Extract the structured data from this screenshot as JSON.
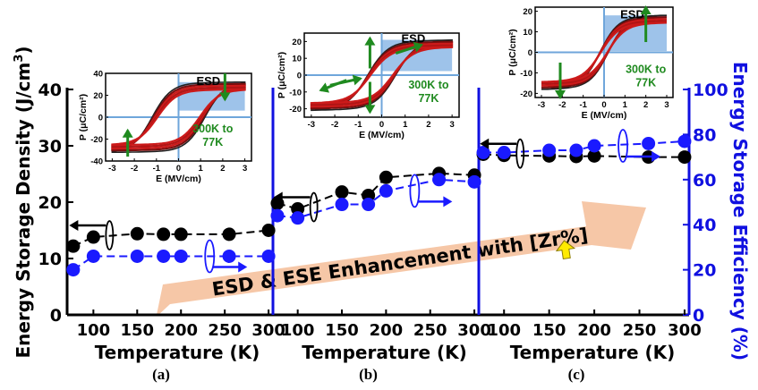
{
  "figure": {
    "left_axis_label": "Energy Storage Density (J/cm",
    "left_axis_sup": "3",
    "left_axis_close": ")",
    "right_axis_label": "Energy Storage Efficiency (%)",
    "left_ticks": [
      "0",
      "10",
      "20",
      "30",
      "40"
    ],
    "right_ticks": [
      "0",
      "20",
      "40",
      "60",
      "80",
      "100"
    ],
    "banner": "ESD & ESE Enhancement with [Zr%]",
    "colors": {
      "density": "#000000",
      "efficiency": "#1a1aff",
      "axis_blue": "#1010e0",
      "banner": "#f6c7a7",
      "hysteresis_red": "#cc1a1a",
      "arrow_green": "#1f8a1f",
      "esd_fill": "#9ec3ea"
    }
  },
  "chart_data": [
    {
      "type": "scatter",
      "panel": "(a)",
      "xlabel": "Temperature (K)",
      "x_ticks": [
        "100",
        "150",
        "200",
        "250",
        "300"
      ],
      "xlim": [
        70,
        305
      ],
      "ylim_left": [
        0,
        40
      ],
      "ylim_right": [
        0,
        100
      ],
      "series": [
        {
          "name": "Energy Storage Density",
          "axis": "left",
          "x": [
            77,
            100,
            150,
            180,
            200,
            255,
            300
          ],
          "values": [
            12.2,
            13.8,
            14.4,
            14.3,
            14.3,
            14.3,
            15.0
          ]
        },
        {
          "name": "Energy Storage Efficiency",
          "axis": "right",
          "x": [
            77,
            100,
            150,
            180,
            200,
            255,
            300
          ],
          "values": [
            20,
            26,
            26,
            26,
            26,
            26,
            26
          ]
        }
      ],
      "inset": {
        "xlabel": "E (MV/cm)",
        "ylabel": "P (μC/cm²)",
        "x_ticks": [
          "-3",
          "-2",
          "-1",
          "0",
          "1",
          "2",
          "3"
        ],
        "y_ticks": [
          "-40",
          "-20",
          "0",
          "20",
          "40"
        ],
        "xlim": [
          -3.3,
          3.3
        ],
        "ylim": [
          -40,
          40
        ],
        "esd_label": "ESD",
        "temp_label_1": "300K to",
        "temp_label_2": "77K",
        "p_max": 32,
        "p_r": 20,
        "e_c": 1.2
      }
    },
    {
      "type": "scatter",
      "panel": "(b)",
      "xlabel": "Temperature (K)",
      "x_ticks": [
        "100",
        "150",
        "200",
        "250",
        "300"
      ],
      "xlim": [
        75,
        305
      ],
      "ylim_left": [
        0,
        40
      ],
      "ylim_right": [
        0,
        100
      ],
      "series": [
        {
          "name": "Energy Storage Density",
          "axis": "left",
          "x": [
            77,
            100,
            150,
            180,
            200,
            260,
            300
          ],
          "values": [
            19.8,
            18.8,
            21.8,
            21.2,
            24.4,
            25.1,
            24.8
          ]
        },
        {
          "name": "Energy Storage Efficiency",
          "axis": "right",
          "x": [
            77,
            100,
            150,
            180,
            200,
            260,
            300
          ],
          "values": [
            44,
            43,
            49,
            49,
            55,
            60,
            59
          ]
        }
      ],
      "inset": {
        "xlabel": "E (MV/cm)",
        "ylabel": "P (μC/cm²)",
        "x_ticks": [
          "-3",
          "-2",
          "-1",
          "0",
          "1",
          "2",
          "3"
        ],
        "y_ticks": [
          "-20",
          "-10",
          "0",
          "10",
          "20"
        ],
        "xlim": [
          -3.3,
          3.3
        ],
        "ylim": [
          -25,
          25
        ],
        "esd_label": "ESD",
        "temp_label_1": "300K to",
        "temp_label_2": "77K",
        "p_max": 21,
        "p_r": 8,
        "e_c": 0.6
      }
    },
    {
      "type": "scatter",
      "panel": "(c)",
      "xlabel": "Temperature (K)",
      "x_ticks": [
        "100",
        "150",
        "200",
        "250",
        "300"
      ],
      "xlim": [
        75,
        305
      ],
      "ylim_left": [
        0,
        40
      ],
      "ylim_right": [
        0,
        100
      ],
      "series": [
        {
          "name": "Energy Storage Density",
          "axis": "left",
          "x": [
            77,
            100,
            150,
            180,
            200,
            260,
            300
          ],
          "values": [
            28.5,
            28.3,
            28.2,
            28.1,
            28.2,
            28.0,
            28.0
          ]
        },
        {
          "name": "Energy Storage Efficiency",
          "axis": "right",
          "x": [
            77,
            100,
            150,
            180,
            200,
            260,
            300
          ],
          "values": [
            72,
            72,
            73,
            73,
            75,
            76,
            77
          ]
        }
      ],
      "inset": {
        "xlabel": "E (MV/cm)",
        "ylabel": "P (μC/cm²)",
        "x_ticks": [
          "-3",
          "-2",
          "-1",
          "0",
          "1",
          "2",
          "3"
        ],
        "y_ticks": [
          "-20",
          "-10",
          "0",
          "10",
          "20"
        ],
        "xlim": [
          -3.3,
          3.3
        ],
        "ylim": [
          -22,
          22
        ],
        "esd_label": "ESD",
        "temp_label_1": "300K to",
        "temp_label_2": "77K",
        "p_max": 18,
        "p_r": 2,
        "e_c": 0.2
      }
    }
  ]
}
